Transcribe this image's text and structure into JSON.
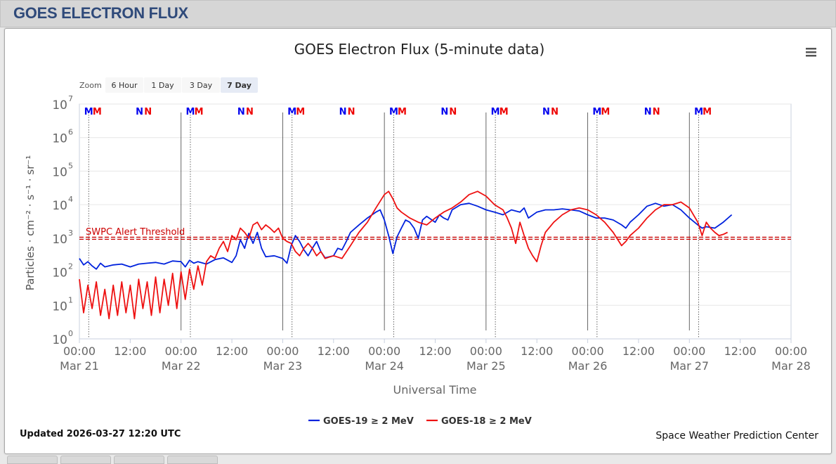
{
  "header": {
    "title": "GOES ELECTRON FLUX"
  },
  "chart_title": "GOES Electron Flux (5-minute data)",
  "zoom": {
    "label": "Zoom",
    "buttons": [
      "6 Hour",
      "1 Day",
      "3 Day",
      "7 Day"
    ],
    "selected": "7 Day"
  },
  "updated": "Updated 2026-03-27 12:20 UTC",
  "credit": "Space Weather Prediction Center",
  "threshold": {
    "label": "SWPC Alert Threshold",
    "value": 1000,
    "color": "#cc0000"
  },
  "menu_icon": "hamburger-menu-icon",
  "chart_data": {
    "type": "line",
    "title": "GOES Electron Flux (5-minute data)",
    "xlabel": "Universal Time",
    "ylabel": "Particles · cm⁻² · s⁻¹ · sr⁻¹",
    "yscale": "log",
    "ylim": [
      1,
      10000000
    ],
    "xlim": [
      "2026-03-21 00:00",
      "2026-03-28 00:00"
    ],
    "y_ticks": [
      1,
      10,
      100,
      1000,
      10000,
      100000,
      1000000,
      10000000
    ],
    "x_ticks": [
      {
        "time": "00:00",
        "date": "Mar 21"
      },
      {
        "time": "12:00",
        "date": ""
      },
      {
        "time": "00:00",
        "date": "Mar 22"
      },
      {
        "time": "12:00",
        "date": ""
      },
      {
        "time": "00:00",
        "date": "Mar 23"
      },
      {
        "time": "12:00",
        "date": ""
      },
      {
        "time": "00:00",
        "date": "Mar 24"
      },
      {
        "time": "12:00",
        "date": ""
      },
      {
        "time": "00:00",
        "date": "Mar 25"
      },
      {
        "time": "12:00",
        "date": ""
      },
      {
        "time": "00:00",
        "date": "Mar 26"
      },
      {
        "time": "12:00",
        "date": ""
      },
      {
        "time": "00:00",
        "date": "Mar 27"
      },
      {
        "time": "12:00",
        "date": ""
      },
      {
        "time": "00:00",
        "date": "Mar 28"
      }
    ],
    "grid": true,
    "legend_position": "bottom-center",
    "markers": [
      {
        "letter": "M",
        "color": "#0000ee",
        "hours": [
          2.2,
          26.2,
          50.2,
          74.2,
          98.2,
          122.2,
          146.2
        ]
      },
      {
        "letter": "M",
        "color": "#ee0000",
        "hours": [
          4.2,
          28.2,
          52.2,
          76.2,
          100.2,
          124.2,
          148.2
        ]
      },
      {
        "letter": "N",
        "color": "#0000ee",
        "hours": [
          14.2,
          38.2,
          62.2,
          86.2,
          110.2,
          134.2
        ]
      },
      {
        "letter": "N",
        "color": "#ee0000",
        "hours": [
          16.2,
          40.2,
          64.2,
          88.2,
          112.2,
          136.2
        ]
      }
    ],
    "series": [
      {
        "name": "GOES-19 ≥ 2 MeV",
        "color": "#0022dd",
        "points": [
          [
            0,
            250
          ],
          [
            1,
            160
          ],
          [
            2,
            200
          ],
          [
            3,
            150
          ],
          [
            4,
            120
          ],
          [
            5,
            180
          ],
          [
            6,
            140
          ],
          [
            8,
            160
          ],
          [
            10,
            170
          ],
          [
            12,
            140
          ],
          [
            14,
            170
          ],
          [
            16,
            180
          ],
          [
            18,
            190
          ],
          [
            20,
            170
          ],
          [
            22,
            210
          ],
          [
            24,
            200
          ],
          [
            25,
            140
          ],
          [
            26,
            220
          ],
          [
            27,
            180
          ],
          [
            28,
            200
          ],
          [
            30,
            170
          ],
          [
            32,
            230
          ],
          [
            34,
            260
          ],
          [
            36,
            190
          ],
          [
            37,
            300
          ],
          [
            38,
            900
          ],
          [
            39,
            500
          ],
          [
            40,
            1400
          ],
          [
            41,
            700
          ],
          [
            42,
            1500
          ],
          [
            43,
            500
          ],
          [
            44,
            280
          ],
          [
            46,
            300
          ],
          [
            48,
            250
          ],
          [
            49,
            180
          ],
          [
            50,
            600
          ],
          [
            51,
            1200
          ],
          [
            52,
            800
          ],
          [
            53,
            450
          ],
          [
            54,
            300
          ],
          [
            55,
            500
          ],
          [
            56,
            800
          ],
          [
            57,
            400
          ],
          [
            58,
            260
          ],
          [
            60,
            300
          ],
          [
            61,
            500
          ],
          [
            62,
            450
          ],
          [
            63,
            800
          ],
          [
            64,
            1500
          ],
          [
            66,
            2500
          ],
          [
            68,
            4000
          ],
          [
            70,
            6000
          ],
          [
            71,
            7000
          ],
          [
            72,
            3500
          ],
          [
            73,
            1200
          ],
          [
            74,
            350
          ],
          [
            75,
            1100
          ],
          [
            76,
            2000
          ],
          [
            77,
            3500
          ],
          [
            78,
            3000
          ],
          [
            79,
            2000
          ],
          [
            80,
            1000
          ],
          [
            81,
            3500
          ],
          [
            82,
            4500
          ],
          [
            84,
            3000
          ],
          [
            85,
            5000
          ],
          [
            86,
            4000
          ],
          [
            87,
            3500
          ],
          [
            88,
            7000
          ],
          [
            90,
            10000
          ],
          [
            92,
            11000
          ],
          [
            94,
            9000
          ],
          [
            96,
            7000
          ],
          [
            98,
            6000
          ],
          [
            100,
            5000
          ],
          [
            102,
            7000
          ],
          [
            104,
            6000
          ],
          [
            105,
            8000
          ],
          [
            106,
            4000
          ],
          [
            108,
            6000
          ],
          [
            110,
            7000
          ],
          [
            112,
            7000
          ],
          [
            114,
            7500
          ],
          [
            116,
            7000
          ],
          [
            118,
            6500
          ],
          [
            120,
            5000
          ],
          [
            122,
            4000
          ],
          [
            124,
            4000
          ],
          [
            126,
            3500
          ],
          [
            128,
            2500
          ],
          [
            129,
            2000
          ],
          [
            130,
            3000
          ],
          [
            132,
            5000
          ],
          [
            134,
            9000
          ],
          [
            136,
            11000
          ],
          [
            138,
            9000
          ],
          [
            140,
            10000
          ],
          [
            142,
            7000
          ],
          [
            144,
            4000
          ],
          [
            146,
            2500
          ],
          [
            147,
            2000
          ],
          [
            148,
            2200
          ],
          [
            150,
            2000
          ],
          [
            152,
            3000
          ],
          [
            154,
            5000
          ]
        ]
      },
      {
        "name": "GOES-18 ≥ 2 MeV",
        "color": "#ee1111",
        "points": [
          [
            0,
            60
          ],
          [
            1,
            6
          ],
          [
            2,
            40
          ],
          [
            3,
            8
          ],
          [
            4,
            50
          ],
          [
            5,
            5
          ],
          [
            6,
            30
          ],
          [
            7,
            4
          ],
          [
            8,
            40
          ],
          [
            9,
            5
          ],
          [
            10,
            50
          ],
          [
            11,
            6
          ],
          [
            12,
            40
          ],
          [
            13,
            4
          ],
          [
            14,
            60
          ],
          [
            15,
            8
          ],
          [
            16,
            50
          ],
          [
            17,
            5
          ],
          [
            18,
            70
          ],
          [
            19,
            6
          ],
          [
            20,
            60
          ],
          [
            21,
            10
          ],
          [
            22,
            90
          ],
          [
            23,
            8
          ],
          [
            24,
            100
          ],
          [
            25,
            15
          ],
          [
            26,
            120
          ],
          [
            27,
            30
          ],
          [
            28,
            150
          ],
          [
            29,
            40
          ],
          [
            30,
            200
          ],
          [
            31,
            300
          ],
          [
            32,
            250
          ],
          [
            33,
            500
          ],
          [
            34,
            800
          ],
          [
            35,
            400
          ],
          [
            36,
            1200
          ],
          [
            37,
            900
          ],
          [
            38,
            2000
          ],
          [
            39,
            1500
          ],
          [
            40,
            1000
          ],
          [
            41,
            2500
          ],
          [
            42,
            3000
          ],
          [
            43,
            1800
          ],
          [
            44,
            2500
          ],
          [
            45,
            2000
          ],
          [
            46,
            1500
          ],
          [
            47,
            2000
          ],
          [
            48,
            1000
          ],
          [
            49,
            800
          ],
          [
            50,
            700
          ],
          [
            51,
            400
          ],
          [
            52,
            300
          ],
          [
            53,
            500
          ],
          [
            54,
            700
          ],
          [
            55,
            500
          ],
          [
            56,
            300
          ],
          [
            57,
            400
          ],
          [
            58,
            250
          ],
          [
            60,
            300
          ],
          [
            62,
            250
          ],
          [
            64,
            600
          ],
          [
            66,
            1500
          ],
          [
            68,
            3000
          ],
          [
            70,
            8000
          ],
          [
            72,
            20000
          ],
          [
            73,
            25000
          ],
          [
            74,
            15000
          ],
          [
            75,
            8000
          ],
          [
            76,
            6000
          ],
          [
            78,
            4000
          ],
          [
            80,
            3000
          ],
          [
            82,
            2500
          ],
          [
            84,
            4000
          ],
          [
            86,
            6000
          ],
          [
            88,
            8000
          ],
          [
            90,
            12000
          ],
          [
            92,
            20000
          ],
          [
            94,
            25000
          ],
          [
            96,
            18000
          ],
          [
            98,
            10000
          ],
          [
            100,
            7000
          ],
          [
            101,
            4000
          ],
          [
            102,
            2000
          ],
          [
            103,
            700
          ],
          [
            104,
            3000
          ],
          [
            105,
            1200
          ],
          [
            106,
            500
          ],
          [
            107,
            300
          ],
          [
            108,
            200
          ],
          [
            109,
            600
          ],
          [
            110,
            1500
          ],
          [
            112,
            3000
          ],
          [
            114,
            5000
          ],
          [
            116,
            7000
          ],
          [
            118,
            8000
          ],
          [
            120,
            7000
          ],
          [
            122,
            5000
          ],
          [
            124,
            3000
          ],
          [
            126,
            1500
          ],
          [
            128,
            600
          ],
          [
            129,
            800
          ],
          [
            130,
            1200
          ],
          [
            132,
            2000
          ],
          [
            134,
            4000
          ],
          [
            136,
            7000
          ],
          [
            138,
            10000
          ],
          [
            140,
            10000
          ],
          [
            142,
            12000
          ],
          [
            144,
            8000
          ],
          [
            146,
            3000
          ],
          [
            147,
            1200
          ],
          [
            148,
            3000
          ],
          [
            149,
            2000
          ],
          [
            150,
            1500
          ],
          [
            151,
            1200
          ],
          [
            152,
            1300
          ],
          [
            153,
            1500
          ]
        ]
      }
    ]
  }
}
